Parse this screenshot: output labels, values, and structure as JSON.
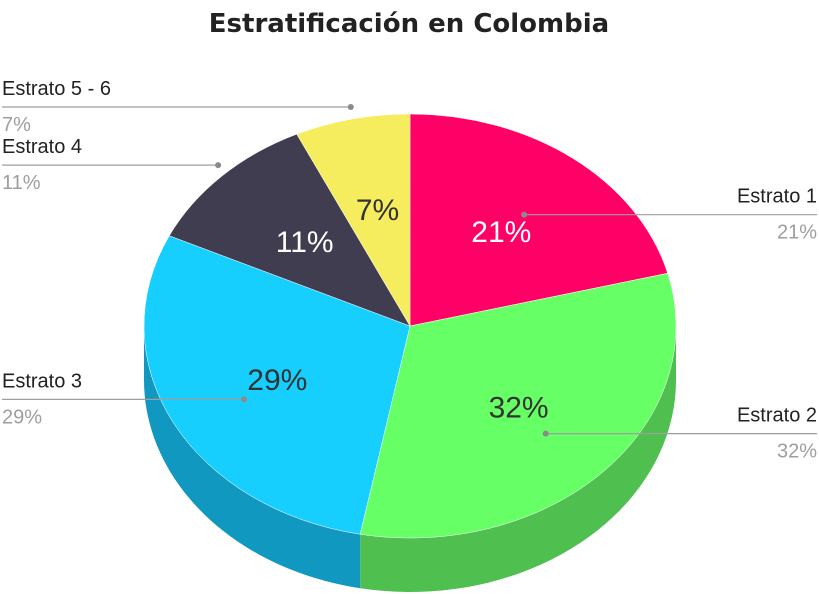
{
  "chart_data": {
    "type": "pie",
    "title": "Estratificación en Colombia",
    "legend_position": "outside-labels",
    "slices": [
      {
        "label": "Estrato 1",
        "value": 21,
        "display": "21%",
        "color": "#ff0066",
        "side_color": "#c8004f",
        "text_color": "#ffffff"
      },
      {
        "label": "Estrato 2",
        "value": 32,
        "display": "32%",
        "color": "#66ff66",
        "side_color": "#4fbf4f",
        "text_color": "#333333"
      },
      {
        "label": "Estrato 3",
        "value": 29,
        "display": "29%",
        "color": "#16cfff",
        "side_color": "#1198c0",
        "text_color": "#333333"
      },
      {
        "label": "Estrato 4",
        "value": 11,
        "display": "11%",
        "color": "#413d51",
        "side_color": "#2e2b3a",
        "text_color": "#ffffff"
      },
      {
        "label": "Estrato 5 - 6",
        "value": 7,
        "display": "7%",
        "color": "#f5ec5e",
        "side_color": "#c9c24a",
        "text_color": "#333333"
      }
    ]
  }
}
